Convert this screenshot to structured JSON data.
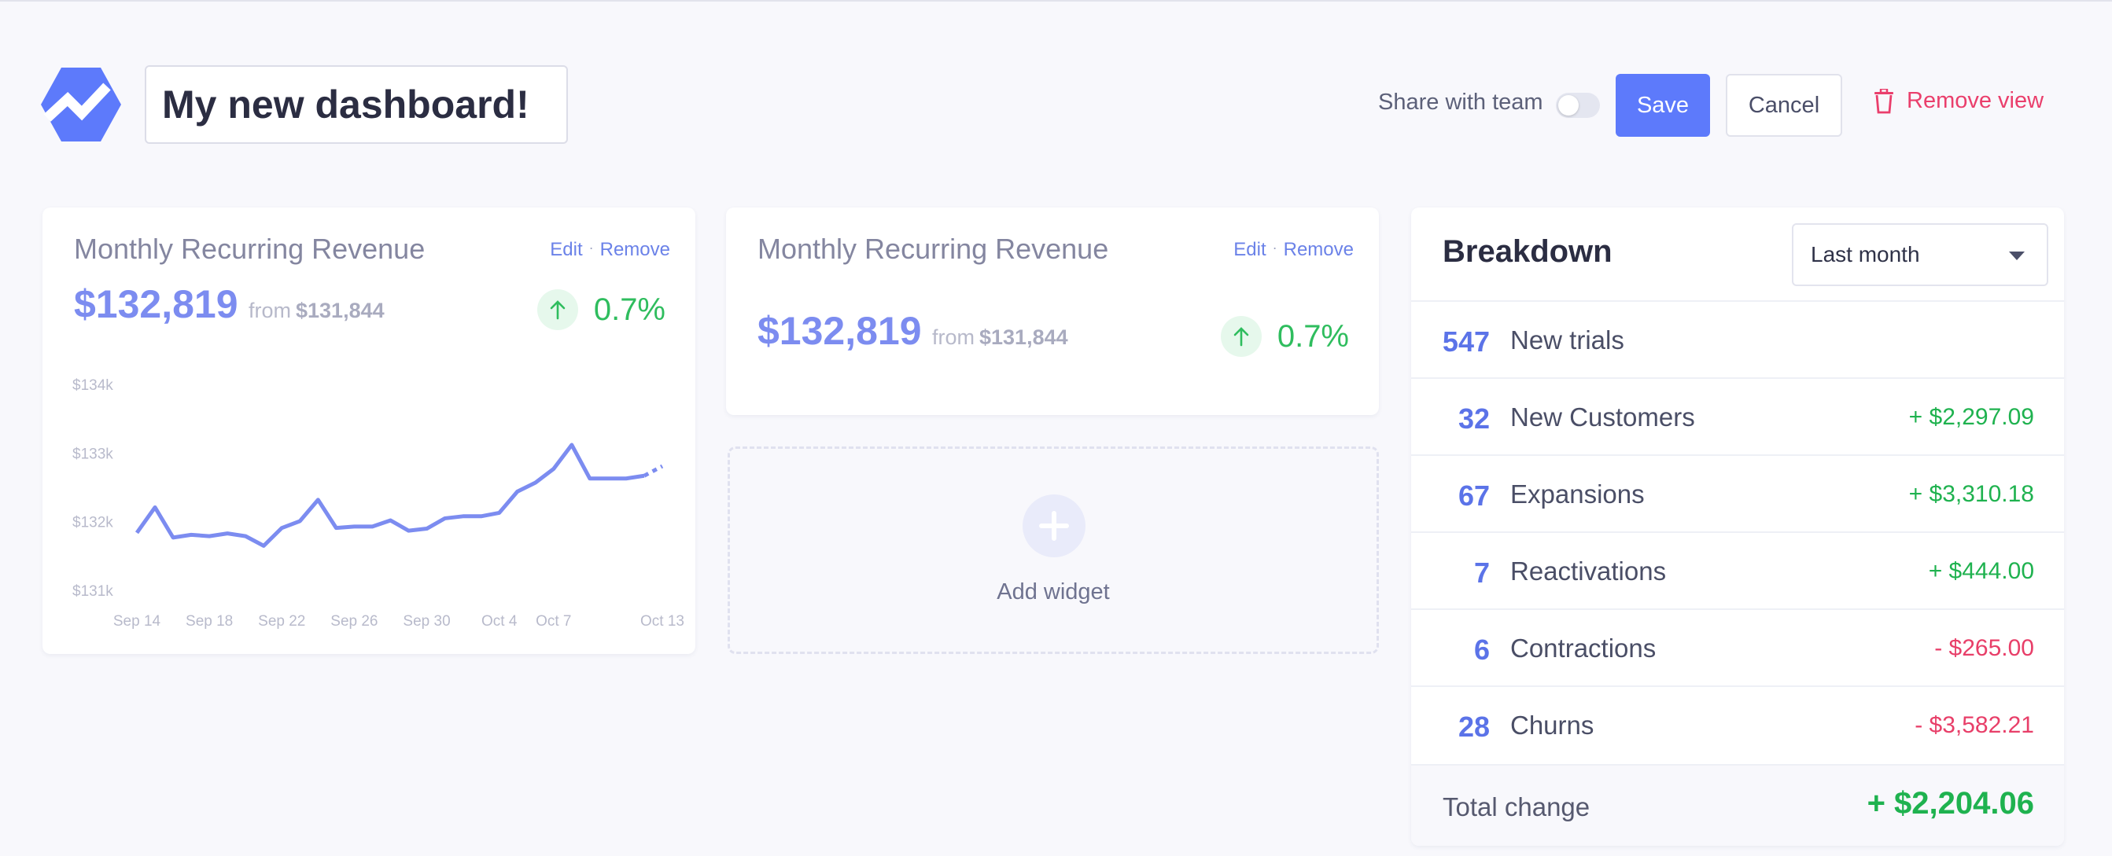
{
  "header": {
    "dashboard_title": "My new dashboard!",
    "share_label": "Share with team",
    "share_enabled": false,
    "save_label": "Save",
    "cancel_label": "Cancel",
    "remove_view_label": "Remove view"
  },
  "colors": {
    "accent": "#5d7afb",
    "positive": "#1fb24f",
    "negative": "#e83f69",
    "line": "#7c8cf0"
  },
  "widgets": [
    {
      "title": "Monthly Recurring Revenue",
      "edit_label": "Edit",
      "remove_label": "Remove",
      "value": "$132,819",
      "from_label": "from",
      "from_value": "$131,844",
      "change": "0.7%",
      "change_icon": "arrow-up-icon"
    },
    {
      "title": "Monthly Recurring Revenue",
      "edit_label": "Edit",
      "remove_label": "Remove",
      "value": "$132,819",
      "from_label": "from",
      "from_value": "$131,844",
      "change": "0.7%",
      "change_icon": "arrow-up-icon"
    }
  ],
  "chart_data": {
    "type": "line",
    "y_ticks": [
      "$134k",
      "$133k",
      "$132k",
      "$131k"
    ],
    "ylim": [
      131000,
      134000
    ],
    "x_ticks": [
      "Sep 14",
      "Sep 18",
      "Sep 22",
      "Sep 26",
      "Sep 30",
      "Oct 4",
      "Oct 7",
      "Oct 13"
    ],
    "x_tick_days": [
      0,
      4,
      8,
      12,
      16,
      20,
      23,
      29
    ],
    "x_days": [
      0,
      1,
      2,
      3,
      4,
      5,
      6,
      7,
      8,
      9,
      10,
      11,
      12,
      13,
      14,
      15,
      16,
      17,
      18,
      19,
      20,
      21,
      22,
      23,
      24,
      25,
      26,
      27,
      28,
      29
    ],
    "values": [
      131850,
      132220,
      131780,
      131820,
      131800,
      131840,
      131800,
      131660,
      131920,
      132020,
      132330,
      131920,
      131940,
      131940,
      132030,
      131880,
      131910,
      132060,
      132090,
      132090,
      132140,
      132450,
      132580,
      132780,
      133130,
      132640,
      132640,
      132640,
      132680,
      132820
    ],
    "dashed_from_index": 28
  },
  "add_widget": {
    "label": "Add widget",
    "icon": "plus-icon"
  },
  "breakdown": {
    "title": "Breakdown",
    "period": "Last month",
    "rows": [
      {
        "count": "547",
        "label": "New trials",
        "amount": ""
      },
      {
        "count": "32",
        "label": "New Customers",
        "amount": "+ $2,297.09"
      },
      {
        "count": "67",
        "label": "Expansions",
        "amount": "+ $3,310.18"
      },
      {
        "count": "7",
        "label": "Reactivations",
        "amount": "+ $444.00"
      },
      {
        "count": "6",
        "label": "Contractions",
        "amount": "- $265.00"
      },
      {
        "count": "28",
        "label": "Churns",
        "amount": "- $3,582.21"
      }
    ],
    "total_label": "Total change",
    "total_amount": "+ $2,204.06"
  }
}
